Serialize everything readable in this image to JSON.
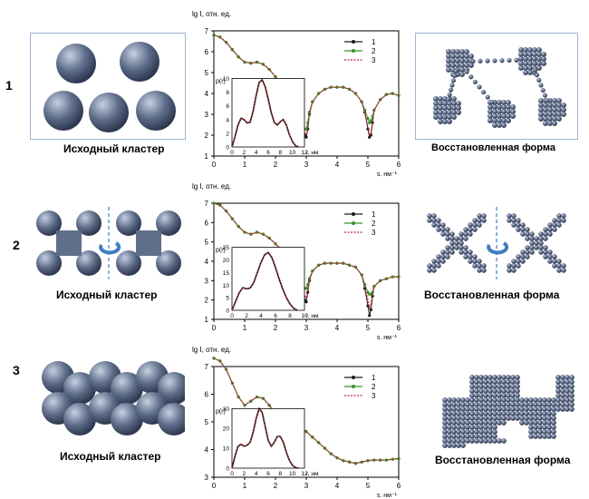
{
  "colors": {
    "series1": "#1a1a1a",
    "series2": "#3a8f2a",
    "series3": "#c0282f",
    "sphere": "#5f6e8a",
    "arrow": "#3d7fc0",
    "frame": "#9fb4d3"
  },
  "rows": [
    {
      "number": "1",
      "left_caption": "Исходный кластер",
      "right_caption": "Восстановленная форма",
      "left_icon": "sphere-cluster",
      "right_icon": "reconstructed-model"
    },
    {
      "number": "2",
      "left_caption": "Исходный кластер",
      "right_caption": "Восстановленная форма",
      "left_icon": "cross-cluster",
      "right_icon": "reconstructed-model"
    },
    {
      "number": "3",
      "left_caption": "Исходный кластер",
      "right_caption": "Восстановленная форма",
      "left_icon": "chain-cluster",
      "right_icon": "reconstructed-model"
    }
  ],
  "chart_data": [
    {
      "type": "line",
      "ylabel": "lg I, отн. ед.",
      "xlabel": "s, нм⁻¹",
      "xlim": [
        0,
        6
      ],
      "ylim": [
        1,
        7
      ],
      "xticks": [
        "0",
        "1",
        "2",
        "3",
        "4",
        "5",
        "6"
      ],
      "yticks": [
        "1",
        "2",
        "3",
        "4",
        "5",
        "6",
        "7"
      ],
      "legend": [
        "1",
        "2",
        "3"
      ],
      "legend_position": "top-right",
      "x": [
        0,
        0.2,
        0.4,
        0.6,
        0.8,
        1.0,
        1.2,
        1.4,
        1.6,
        1.8,
        2.0,
        2.2,
        2.4,
        2.6,
        2.8,
        2.9,
        2.95,
        3.0,
        3.05,
        3.1,
        3.2,
        3.4,
        3.6,
        3.8,
        4.0,
        4.2,
        4.4,
        4.6,
        4.8,
        4.9,
        5.0,
        5.05,
        5.1,
        5.15,
        5.2,
        5.4,
        5.6,
        5.8,
        6.0
      ],
      "series": [
        {
          "name": "1",
          "values": [
            6.8,
            6.7,
            6.45,
            6.1,
            5.75,
            5.5,
            5.45,
            5.5,
            5.4,
            5.15,
            4.8,
            4.4,
            4.0,
            3.6,
            3.0,
            2.5,
            2.0,
            1.9,
            2.3,
            3.0,
            3.6,
            4.0,
            4.2,
            4.3,
            4.3,
            4.3,
            4.2,
            4.0,
            3.6,
            3.1,
            2.3,
            1.9,
            2.0,
            2.6,
            3.2,
            3.7,
            3.95,
            4.0,
            3.9
          ]
        },
        {
          "name": "2",
          "values": [
            6.8,
            6.7,
            6.45,
            6.1,
            5.75,
            5.5,
            5.45,
            5.5,
            5.4,
            5.15,
            4.8,
            4.4,
            4.0,
            3.6,
            3.0,
            2.6,
            2.3,
            2.3,
            2.6,
            3.1,
            3.6,
            4.0,
            4.2,
            4.3,
            4.3,
            4.3,
            4.2,
            4.0,
            3.6,
            3.2,
            2.8,
            2.6,
            2.7,
            2.9,
            3.2,
            3.7,
            3.95,
            4.0,
            3.9
          ]
        },
        {
          "name": "3",
          "values": [
            6.8,
            6.7,
            6.45,
            6.1,
            5.75,
            5.5,
            5.45,
            5.5,
            5.4,
            5.15,
            4.8,
            4.4,
            4.0,
            3.6,
            3.0,
            2.5,
            2.1,
            2.0,
            2.4,
            3.0,
            3.6,
            4.0,
            4.2,
            4.3,
            4.3,
            4.3,
            4.2,
            4.0,
            3.6,
            3.1,
            2.4,
            2.0,
            2.1,
            2.6,
            3.2,
            3.7,
            3.95,
            4.0,
            3.9
          ]
        }
      ],
      "inset": {
        "ylabel": "p(r)",
        "xlabel": "r, нм",
        "xlim": [
          0,
          12
        ],
        "ylim": [
          0,
          10
        ],
        "xticks": [
          "0",
          "2",
          "4",
          "6",
          "8",
          "10",
          "12"
        ],
        "yticks": [
          "0",
          "2",
          "4",
          "6",
          "8",
          "10"
        ],
        "x": [
          0,
          0.5,
          1,
          1.5,
          2,
          2.5,
          3,
          3.5,
          4,
          4.5,
          5,
          5.5,
          6,
          6.5,
          7,
          7.5,
          8,
          8.5,
          9,
          9.5,
          10,
          10.5,
          11
        ],
        "values": [
          0,
          1.5,
          3.2,
          4.2,
          4.0,
          3.5,
          3.6,
          5.2,
          7.5,
          9.4,
          9.8,
          8.8,
          7.0,
          5.0,
          3.6,
          3.2,
          3.7,
          4.0,
          3.2,
          1.8,
          0.8,
          0.2,
          0
        ]
      }
    },
    {
      "type": "line",
      "ylabel": "lg I, отн. ед.",
      "xlabel": "s, нм⁻¹",
      "xlim": [
        0,
        6
      ],
      "ylim": [
        1,
        7
      ],
      "xticks": [
        "0",
        "1",
        "2",
        "3",
        "4",
        "5",
        "6"
      ],
      "yticks": [
        "1",
        "2",
        "3",
        "4",
        "5",
        "6",
        "7"
      ],
      "legend": [
        "1",
        "2",
        "3"
      ],
      "legend_position": "top-right",
      "x": [
        0,
        0.2,
        0.4,
        0.6,
        0.8,
        1.0,
        1.2,
        1.4,
        1.6,
        1.8,
        2.0,
        2.2,
        2.4,
        2.6,
        2.8,
        2.9,
        2.95,
        3.0,
        3.05,
        3.1,
        3.2,
        3.4,
        3.6,
        3.8,
        4.0,
        4.2,
        4.4,
        4.6,
        4.8,
        4.9,
        5.0,
        5.05,
        5.1,
        5.15,
        5.2,
        5.4,
        5.6,
        5.8,
        6.0
      ],
      "series": [
        {
          "name": "1",
          "values": [
            7.0,
            6.9,
            6.6,
            6.2,
            5.8,
            5.5,
            5.4,
            5.5,
            5.4,
            5.2,
            4.9,
            4.6,
            4.3,
            3.9,
            3.3,
            2.6,
            2.0,
            1.9,
            2.4,
            3.0,
            3.5,
            3.8,
            3.9,
            3.9,
            3.9,
            3.9,
            3.8,
            3.7,
            3.3,
            2.6,
            1.7,
            1.2,
            1.5,
            2.2,
            2.7,
            3.0,
            3.1,
            3.2,
            3.2
          ]
        },
        {
          "name": "2",
          "values": [
            7.0,
            6.9,
            6.6,
            6.2,
            5.8,
            5.5,
            5.4,
            5.5,
            5.4,
            5.2,
            4.9,
            4.6,
            4.3,
            3.9,
            3.3,
            2.8,
            2.6,
            2.6,
            2.8,
            3.1,
            3.5,
            3.8,
            3.9,
            3.9,
            3.9,
            3.9,
            3.8,
            3.7,
            3.3,
            2.8,
            2.4,
            2.3,
            2.3,
            2.4,
            2.7,
            3.0,
            3.1,
            3.2,
            3.2
          ]
        },
        {
          "name": "3",
          "values": [
            7.0,
            6.9,
            6.6,
            6.2,
            5.8,
            5.5,
            5.4,
            5.5,
            5.4,
            5.2,
            4.9,
            4.6,
            4.3,
            3.9,
            3.3,
            2.7,
            2.2,
            2.1,
            2.5,
            3.0,
            3.5,
            3.8,
            3.9,
            3.9,
            3.9,
            3.9,
            3.8,
            3.7,
            3.3,
            2.7,
            2.0,
            1.6,
            1.8,
            2.3,
            2.7,
            3.0,
            3.1,
            3.2,
            3.2
          ]
        }
      ],
      "inset": {
        "ylabel": "p(r)",
        "xlabel": "r, нм",
        "xlim": [
          0,
          10
        ],
        "ylim": [
          0,
          25
        ],
        "xticks": [
          "0",
          "2",
          "4",
          "6",
          "8",
          "10"
        ],
        "yticks": [
          "0",
          "5",
          "10",
          "15",
          "20",
          "25"
        ],
        "x": [
          0,
          0.5,
          1,
          1.5,
          2,
          2.5,
          3,
          3.5,
          4,
          4.5,
          5,
          5.5,
          6,
          6.5,
          7,
          7.5,
          8,
          8.5,
          9
        ],
        "values": [
          0,
          3.5,
          7,
          9,
          8.5,
          8.8,
          11,
          15,
          19,
          22,
          23,
          21,
          17,
          12.5,
          8.5,
          5,
          2.5,
          0.8,
          0
        ]
      }
    },
    {
      "type": "line",
      "ylabel": "lg I, отн. ед.",
      "xlabel": "s, нм⁻¹",
      "xlim": [
        0,
        6
      ],
      "ylim": [
        3,
        7
      ],
      "xticks": [
        "0",
        "1",
        "2",
        "3",
        "4",
        "5",
        "6"
      ],
      "yticks": [
        "3",
        "4",
        "5",
        "6",
        "7"
      ],
      "legend": [
        "1",
        "2",
        "3"
      ],
      "legend_position": "top-right",
      "x": [
        0,
        0.2,
        0.4,
        0.6,
        0.8,
        1.0,
        1.2,
        1.4,
        1.6,
        1.8,
        2.0,
        2.2,
        2.4,
        2.6,
        2.8,
        3.0,
        3.2,
        3.4,
        3.6,
        3.8,
        4.0,
        4.2,
        4.4,
        4.6,
        4.8,
        5.0,
        5.2,
        5.4,
        5.6,
        5.8,
        6.0
      ],
      "series": [
        {
          "name": "1",
          "values": [
            7.3,
            7.2,
            6.9,
            6.4,
            5.9,
            5.6,
            5.75,
            5.9,
            5.85,
            5.6,
            5.3,
            5.1,
            5.05,
            5.0,
            4.85,
            4.65,
            4.45,
            4.25,
            4.05,
            3.85,
            3.7,
            3.6,
            3.55,
            3.5,
            3.55,
            3.6,
            3.62,
            3.62,
            3.62,
            3.65,
            3.67
          ]
        },
        {
          "name": "2",
          "values": [
            7.3,
            7.2,
            6.9,
            6.4,
            5.9,
            5.6,
            5.75,
            5.9,
            5.85,
            5.6,
            5.3,
            5.1,
            5.05,
            5.0,
            4.85,
            4.65,
            4.45,
            4.25,
            4.05,
            3.85,
            3.7,
            3.6,
            3.55,
            3.5,
            3.55,
            3.6,
            3.62,
            3.62,
            3.62,
            3.65,
            3.67
          ]
        },
        {
          "name": "3",
          "values": [
            7.3,
            7.2,
            6.9,
            6.4,
            5.9,
            5.6,
            5.75,
            5.9,
            5.85,
            5.6,
            5.3,
            5.1,
            5.05,
            5.0,
            4.85,
            4.65,
            4.45,
            4.25,
            4.05,
            3.85,
            3.7,
            3.6,
            3.55,
            3.5,
            3.55,
            3.6,
            3.62,
            3.62,
            3.62,
            3.65,
            3.67
          ]
        }
      ],
      "inset": {
        "ylabel": "p(r)",
        "xlabel": "r, нм",
        "xlim": [
          0,
          12
        ],
        "ylim": [
          0,
          30
        ],
        "xticks": [
          "0",
          "2",
          "4",
          "6",
          "8",
          "10",
          "12"
        ],
        "yticks": [
          "0",
          "10",
          "20",
          "30"
        ],
        "x": [
          0,
          0.5,
          1,
          1.5,
          2,
          2.5,
          3,
          3.5,
          4,
          4.5,
          5,
          5.5,
          6,
          6.5,
          7,
          7.5,
          8,
          8.5,
          9,
          9.5,
          10,
          10.5,
          11
        ],
        "values": [
          0,
          6,
          11,
          12,
          11,
          11.5,
          13,
          18,
          25,
          30,
          28,
          21,
          14,
          11,
          13,
          16,
          16,
          13,
          8,
          4,
          1.5,
          0.3,
          0
        ]
      }
    }
  ]
}
